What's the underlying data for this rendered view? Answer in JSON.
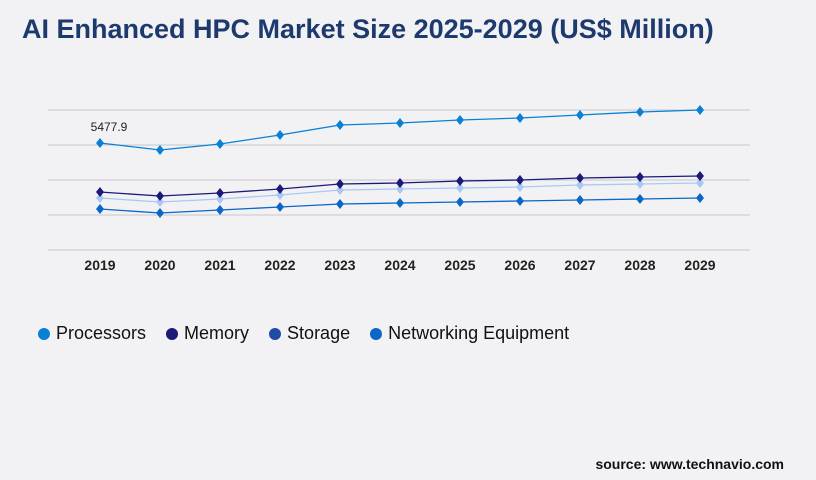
{
  "title": "AI Enhanced HPC Market Size 2025-2029 (US$ Million)",
  "source": "source: www.technavio.com",
  "chart_data": {
    "type": "line",
    "title": "AI Enhanced HPC Market Size 2025-2029 (US$ Million)",
    "xlabel": "",
    "ylabel": "",
    "x": [
      "2019",
      "2020",
      "2021",
      "2022",
      "2023",
      "2024",
      "2025",
      "2026",
      "2027",
      "2028",
      "2029"
    ],
    "ylim": [
      0,
      7168
    ],
    "grid": true,
    "legend_position": "bottom-left",
    "annotations": [
      {
        "series": "Processors",
        "x": "2019",
        "text": "5477.9"
      }
    ],
    "series": [
      {
        "name": "Processors",
        "color": "#0a7fd6",
        "legend_color": "#0a7fd6",
        "values": [
          5477.9,
          5120,
          5427,
          5888,
          6400,
          6502,
          6656,
          6758,
          6912,
          7066,
          7168
        ]
      },
      {
        "name": "Memory",
        "color": "#1b1a7a",
        "legend_color": "#1b1a7a",
        "values": [
          2970,
          2765,
          2918,
          3123,
          3379,
          3430,
          3533,
          3584,
          3686,
          3738,
          3789
        ]
      },
      {
        "name": "Storage",
        "color": "#a9c8f5",
        "legend_color": "#1f4aa8",
        "values": [
          2662,
          2458,
          2611,
          2816,
          3072,
          3123,
          3174,
          3226,
          3328,
          3379,
          3430
        ]
      },
      {
        "name": "Networking Equipment",
        "color": "#0a66c8",
        "legend_color": "#0a66c8",
        "values": [
          2099,
          1894,
          2048,
          2202,
          2355,
          2406,
          2458,
          2509,
          2560,
          2611,
          2662
        ]
      }
    ]
  }
}
